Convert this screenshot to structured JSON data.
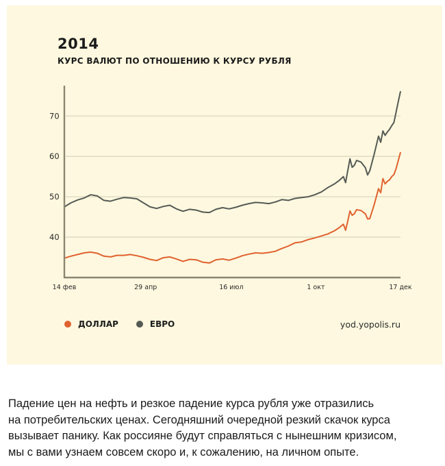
{
  "header": {
    "title": "2014",
    "subtitle": "КУРС ВАЛЮТ ПО ОТНОШЕНИЮ К КУРСУ РУБЛЯ"
  },
  "legend": {
    "items": [
      {
        "label": "ДОЛЛАР",
        "color": "#e0612f"
      },
      {
        "label": "ЕВРО",
        "color": "#555a55"
      }
    ]
  },
  "source": "yod.yopolis.ru",
  "article": {
    "lines": [
      "Падение цен на нефть и резкое падение курса рубля уже отразились",
      "на потребительских ценах. Сегодняшний очередной резкий скачок курса",
      "вызывает панику. Как россияне будут справляться с нынешним кризисом,",
      "мы с вами узнаем совсем скоро и, к сожалению, на личном опыте."
    ]
  },
  "chart_data": {
    "type": "line",
    "title": "2014",
    "subtitle": "КУРС ВАЛЮТ ПО ОТНОШЕНИЮ К КУРСУ РУБЛЯ",
    "xlabel": "",
    "ylabel": "",
    "x_ticks": [
      "14 фев",
      "29 апр",
      "16 июл",
      "1 окт",
      "17 дек"
    ],
    "x_range_days": [
      0,
      306
    ],
    "x_tick_days": [
      0,
      74,
      152,
      229,
      306
    ],
    "ylim": [
      30,
      77
    ],
    "y_ticks": [
      40,
      50,
      60,
      70
    ],
    "grid": true,
    "legend_position": "bottom-left",
    "colors": {
      "axis": "#8a8672",
      "grid": "#dcd8bf",
      "dollar": "#e0612f",
      "euro": "#555a55"
    },
    "series": [
      {
        "name": "ДОЛЛАР",
        "color": "#e0612f",
        "x": [
          0,
          6,
          12,
          18,
          24,
          30,
          36,
          42,
          48,
          54,
          60,
          66,
          72,
          78,
          84,
          90,
          96,
          102,
          108,
          114,
          120,
          126,
          132,
          138,
          144,
          150,
          156,
          162,
          168,
          174,
          180,
          186,
          192,
          198,
          204,
          210,
          216,
          222,
          228,
          234,
          240,
          246,
          250,
          254,
          256,
          258,
          260,
          262,
          264,
          266,
          270,
          274,
          276,
          278,
          282,
          286,
          288,
          290,
          292,
          294,
          296,
          298,
          300,
          302,
          304,
          306
        ],
        "values": [
          34.8,
          35.3,
          35.7,
          36.1,
          36.3,
          36.0,
          35.3,
          35.1,
          35.5,
          35.5,
          35.7,
          35.4,
          35.0,
          34.5,
          34.2,
          34.9,
          35.1,
          34.6,
          34.0,
          34.5,
          34.4,
          33.8,
          33.6,
          34.4,
          34.6,
          34.3,
          34.8,
          35.4,
          35.8,
          36.1,
          36.0,
          36.2,
          36.5,
          37.2,
          37.8,
          38.6,
          38.8,
          39.4,
          39.8,
          40.3,
          40.8,
          41.6,
          42.3,
          43.2,
          41.7,
          44.0,
          46.5,
          45.4,
          45.8,
          46.8,
          46.6,
          45.8,
          44.5,
          44.6,
          48.0,
          52.0,
          51.0,
          54.5,
          53.2,
          53.8,
          54.2,
          55.0,
          55.5,
          57.0,
          59.0,
          61.0
        ]
      },
      {
        "name": "ЕВРО",
        "color": "#555a55",
        "x": [
          0,
          6,
          12,
          18,
          24,
          30,
          36,
          42,
          48,
          54,
          60,
          66,
          72,
          78,
          84,
          90,
          96,
          102,
          108,
          114,
          120,
          126,
          132,
          138,
          144,
          150,
          156,
          162,
          168,
          174,
          180,
          186,
          192,
          198,
          204,
          210,
          216,
          222,
          228,
          234,
          240,
          246,
          250,
          254,
          256,
          258,
          260,
          262,
          264,
          266,
          270,
          274,
          276,
          278,
          282,
          286,
          288,
          290,
          292,
          294,
          296,
          298,
          300,
          302,
          304,
          306
        ],
        "values": [
          47.5,
          48.5,
          49.2,
          49.7,
          50.5,
          50.2,
          49.1,
          48.9,
          49.4,
          49.8,
          49.7,
          49.5,
          48.5,
          47.5,
          47.1,
          47.6,
          47.9,
          47.0,
          46.4,
          46.9,
          46.7,
          46.2,
          46.1,
          46.9,
          47.3,
          47.0,
          47.4,
          47.9,
          48.3,
          48.6,
          48.5,
          48.3,
          48.7,
          49.3,
          49.1,
          49.6,
          49.8,
          50.0,
          50.5,
          51.2,
          52.3,
          53.2,
          54.0,
          55.0,
          53.5,
          56.5,
          59.4,
          57.3,
          57.8,
          59.0,
          58.6,
          57.2,
          55.4,
          56.4,
          60.5,
          65.0,
          63.5,
          66.3,
          65.2,
          66.0,
          66.7,
          67.6,
          68.4,
          71.0,
          73.6,
          76.1
        ]
      }
    ]
  }
}
